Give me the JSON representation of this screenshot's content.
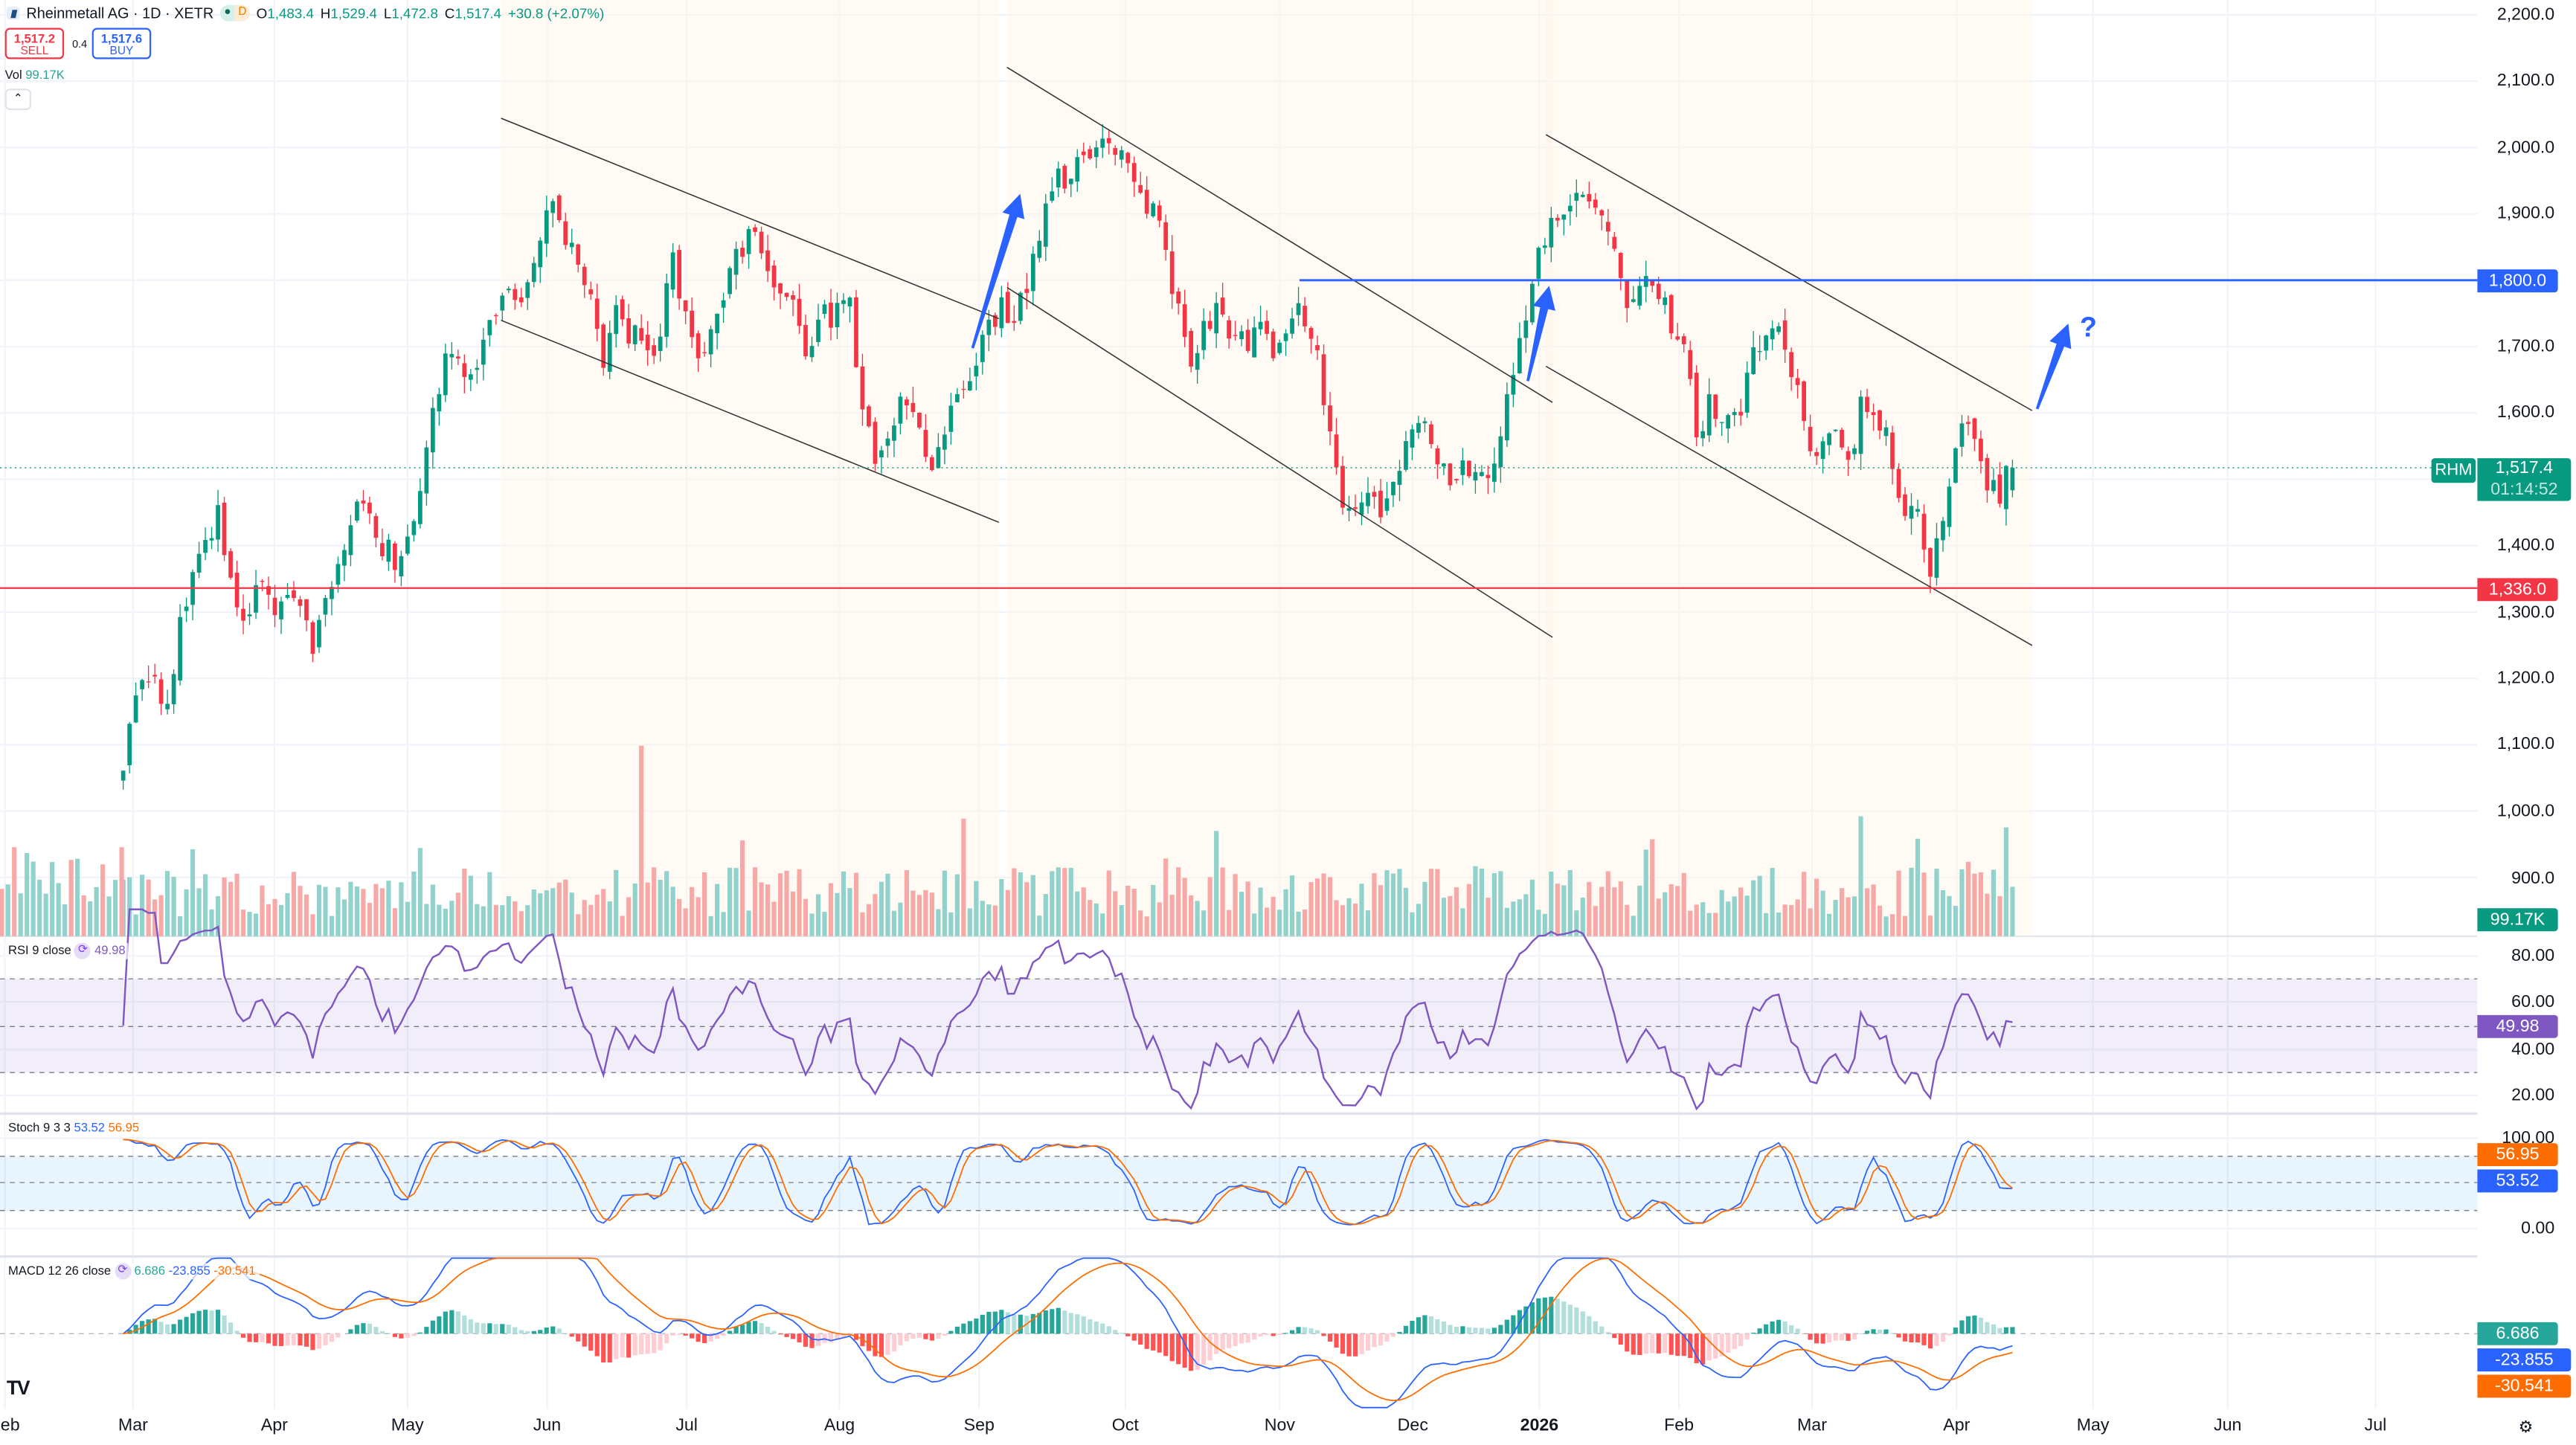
{
  "header": {
    "symbol_title": "Rheinmetall AG · 1D · XETR",
    "market_status": "D",
    "ohlc": {
      "o_label": "O",
      "o": "1,483.4",
      "h_label": "H",
      "h": "1,529.4",
      "l_label": "L",
      "l": "1,472.8",
      "c_label": "C",
      "c": "1,517.4",
      "change": "+30.8 (+2.07%)"
    },
    "sell_price": "1,517.2",
    "sell_label": "SELL",
    "spread": "0.4",
    "buy_price": "1,517.6",
    "buy_label": "BUY",
    "vol_label": "Vol",
    "vol_value": "99.17K"
  },
  "colors": {
    "up": "#089981",
    "down": "#f23645",
    "accent": "#2962ff",
    "rsi": "#7e57c2",
    "stoch_k": "#2962ff",
    "stoch_d": "#ff6d00"
  },
  "price_axis": {
    "ticks": [
      "2,200.0",
      "2,100.0",
      "2,000.0",
      "1,900.0",
      "1,700.0",
      "1,600.0",
      "1,400.0",
      "1,300.0",
      "1,200.0",
      "1,100.0",
      "1,000.0",
      "900.0"
    ],
    "resistance_label": "1,800.0",
    "support_label": "1,336.0",
    "symbol_tag": "RHM",
    "last_price": "1,517.4",
    "countdown": "01:14:52",
    "volume_tag": "99.17K"
  },
  "annotations": {
    "question_mark": "?"
  },
  "rsi": {
    "label": "RSI 9 close",
    "value": "49.98",
    "ticks": [
      "80.00",
      "60.00",
      "40.00",
      "20.00"
    ]
  },
  "stoch": {
    "label": "Stoch 9 3 3",
    "k": "53.52",
    "d": "56.95",
    "ticks": [
      "100.00",
      "0.00"
    ]
  },
  "macd": {
    "label": "MACD 12 26 close",
    "hist": "6.686",
    "macd": "-23.855",
    "signal": "-30.541"
  },
  "time_axis": [
    "Feb",
    "Mar",
    "Apr",
    "May",
    "Jun",
    "Jul",
    "Aug",
    "Sep",
    "Oct",
    "Nov",
    "Dec",
    "2026",
    "Feb",
    "Mar",
    "Apr",
    "May",
    "Jun",
    "Jul"
  ],
  "chart_data": {
    "type": "candlestick",
    "title": "Rheinmetall AG · 1D · XETR",
    "ylim": [
      850,
      2200
    ],
    "last": {
      "open": 1483.4,
      "high": 1529.4,
      "low": 1472.8,
      "close": 1517.4
    },
    "levels": {
      "resistance": 1800,
      "support": 1336
    },
    "price_path": [
      1080,
      1180,
      1200,
      1150,
      1260,
      1350,
      1400,
      1450,
      1320,
      1290,
      1340,
      1310,
      1330,
      1290,
      1250,
      1320,
      1380,
      1470,
      1450,
      1400,
      1380,
      1430,
      1530,
      1640,
      1700,
      1630,
      1680,
      1760,
      1780,
      1760,
      1840,
      1920,
      1880,
      1840,
      1780,
      1680,
      1750,
      1720,
      1700,
      1680,
      1840,
      1760,
      1700,
      1720,
      1800,
      1850,
      1870,
      1830,
      1790,
      1760,
      1690,
      1760,
      1740,
      1780,
      1600,
      1530,
      1580,
      1640,
      1580,
      1490,
      1580,
      1620,
      1640,
      1720,
      1760,
      1740,
      1780,
      1880,
      1960,
      1940,
      1980,
      1990,
      2000,
      1990,
      1930,
      1910,
      1860,
      1760,
      1660,
      1730,
      1760,
      1710,
      1700,
      1740,
      1700,
      1730,
      1760,
      1700,
      1600,
      1480,
      1440,
      1470,
      1430,
      1500,
      1560,
      1600,
      1540,
      1470,
      1520,
      1520,
      1490,
      1600,
      1720,
      1800,
      1880,
      1900,
      1920,
      1940,
      1890,
      1830,
      1760,
      1820,
      1790,
      1740,
      1700,
      1570,
      1620,
      1580,
      1600,
      1700,
      1720,
      1740,
      1650,
      1560,
      1540,
      1600,
      1520,
      1620,
      1600,
      1550,
      1440,
      1460,
      1360,
      1430,
      1580,
      1570,
      1490,
      1480,
      1517.4
    ]
  }
}
